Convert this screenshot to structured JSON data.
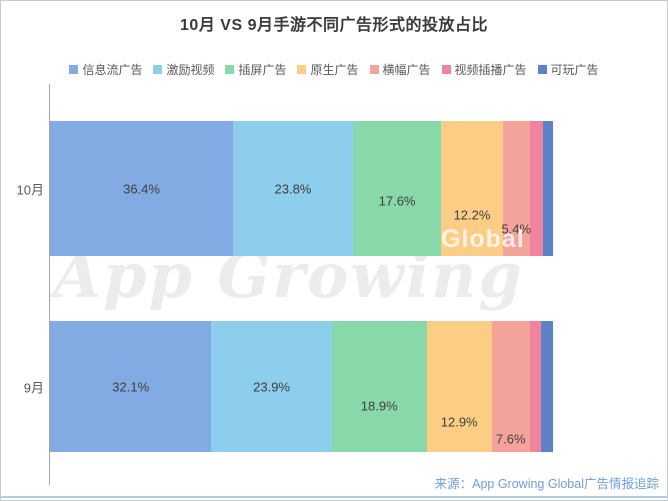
{
  "page": {
    "title": "10月 VS 9月手游不同广告形式的投放占比",
    "source": "来源：App Growing Global广告情报追踪",
    "watermark_main": "App Growing",
    "watermark_sub": "Global"
  },
  "legend": {
    "position": "top",
    "items": [
      {
        "label": "信息流广告",
        "color": "#82ABE3"
      },
      {
        "label": "激励视频",
        "color": "#8CCEEB"
      },
      {
        "label": "插屏广告",
        "color": "#88D9A9"
      },
      {
        "label": "原生广告",
        "color": "#FCCE85"
      },
      {
        "label": "横幅广告",
        "color": "#F4A39B"
      },
      {
        "label": "视频插播广告",
        "color": "#F083A0"
      },
      {
        "label": "可玩广告",
        "color": "#5C83C7"
      }
    ]
  },
  "chart_data": {
    "type": "bar",
    "variant": "horizontal-stacked-100percent",
    "title": "10月 VS 9月手游不同广告形式的投放占比",
    "categories": [
      "10月",
      "9月"
    ],
    "series": [
      {
        "name": "信息流广告",
        "color": "#82ABE3",
        "values": [
          36.4,
          32.1
        ],
        "labels": [
          "36.4%",
          "32.1%"
        ]
      },
      {
        "name": "激励视频",
        "color": "#8CCEEB",
        "values": [
          23.8,
          23.9
        ],
        "labels": [
          "23.8%",
          "23.9%"
        ]
      },
      {
        "name": "插屏广告",
        "color": "#88D9A9",
        "values": [
          17.6,
          18.9
        ],
        "labels": [
          "17.6%",
          "18.9%"
        ]
      },
      {
        "name": "原生广告",
        "color": "#FCCE85",
        "values": [
          12.2,
          12.9
        ],
        "labels": [
          "12.2%",
          "12.9%"
        ]
      },
      {
        "name": "横幅广告",
        "color": "#F4A39B",
        "values": [
          5.4,
          7.6
        ],
        "labels": [
          "5.4%",
          "7.6%"
        ]
      },
      {
        "name": "视频插播广告",
        "color": "#F083A0",
        "values": [
          2.6,
          2.3
        ],
        "labels": [
          "",
          ""
        ]
      },
      {
        "name": "可玩广告",
        "color": "#5C83C7",
        "values": [
          2.0,
          2.3
        ],
        "labels": [
          "",
          ""
        ]
      }
    ],
    "xlim": [
      0,
      100
    ],
    "unit": "%",
    "grid": false,
    "legend_position": "top",
    "note": "values for 视频插播广告 and 可玩广告 are unlabeled in the chart and estimated from segment widths"
  }
}
